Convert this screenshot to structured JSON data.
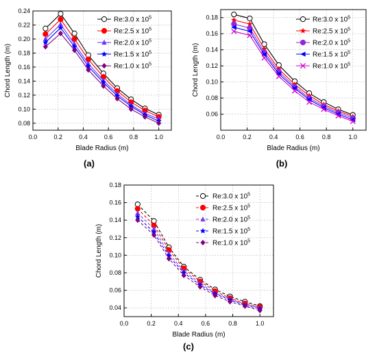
{
  "chart_data": [
    {
      "type": "line",
      "panel_label": "(a)",
      "xlabel": "Blade Radius (m)",
      "ylabel": "Chord Length (m)",
      "xlim": [
        0.0,
        1.1
      ],
      "ylim": [
        0.07,
        0.24
      ],
      "xticks": [
        "0.0",
        "0.2",
        "0.4",
        "0.6",
        "0.8",
        "1.0"
      ],
      "yticks": [
        "0.08",
        "0.10",
        "0.12",
        "0.14",
        "0.16",
        "0.18",
        "0.20",
        "0.22",
        "0.24"
      ],
      "grid": true,
      "legend_position": "top-right",
      "x": [
        0.1,
        0.22,
        0.33,
        0.44,
        0.56,
        0.67,
        0.78,
        0.89,
        1.0
      ],
      "series": [
        {
          "name": "Re:3.0 x 10",
          "exp": "5",
          "color": "#000000",
          "marker": "circle-open",
          "dash": "solid",
          "values": [
            0.215,
            0.236,
            0.208,
            0.177,
            0.151,
            0.13,
            0.114,
            0.101,
            0.092
          ]
        },
        {
          "name": "Re:2.5 x 10",
          "exp": "5",
          "color": "#ff0000",
          "marker": "circle",
          "dash": "solid",
          "values": [
            0.207,
            0.228,
            0.2,
            0.171,
            0.146,
            0.126,
            0.11,
            0.098,
            0.089
          ]
        },
        {
          "name": "Re:2.0 x 10",
          "exp": "5",
          "color": "#6633ff",
          "marker": "triangle",
          "dash": "solid",
          "values": [
            0.2,
            0.221,
            0.193,
            0.165,
            0.141,
            0.122,
            0.106,
            0.094,
            0.086
          ]
        },
        {
          "name": "Re:1.5 x 10",
          "exp": "5",
          "color": "#0000ff",
          "marker": "star",
          "dash": "solid",
          "values": [
            0.195,
            0.216,
            0.189,
            0.161,
            0.138,
            0.119,
            0.104,
            0.092,
            0.083
          ]
        },
        {
          "name": "Re:1.0 x 10",
          "exp": "5",
          "color": "#800080",
          "marker": "diamond",
          "dash": "solid",
          "values": [
            0.189,
            0.208,
            0.184,
            0.156,
            0.133,
            0.115,
            0.1,
            0.089,
            0.08
          ]
        }
      ]
    },
    {
      "type": "line",
      "panel_label": "(b)",
      "xlabel": "Blade  Radius (m)",
      "ylabel": "Chord Length (m)",
      "xlim": [
        0.0,
        1.1
      ],
      "ylim": [
        0.04,
        0.19
      ],
      "xticks": [
        "0.0",
        "0.2",
        "0.4",
        "0.6",
        "0.8",
        "1.0"
      ],
      "yticks": [
        "0.06",
        "0.08",
        "0.10",
        "0.12",
        "0.14",
        "0.16",
        "0.18"
      ],
      "grid": true,
      "legend_position": "top-right",
      "x": [
        0.1,
        0.22,
        0.33,
        0.44,
        0.56,
        0.67,
        0.78,
        0.89,
        1.0
      ],
      "series": [
        {
          "name": "Re:3.0 x 10",
          "exp": "5",
          "color": "#000000",
          "marker": "circle-open",
          "dash": "solid",
          "values": [
            0.184,
            0.179,
            0.147,
            0.121,
            0.101,
            0.086,
            0.075,
            0.066,
            0.059
          ]
        },
        {
          "name": "Re:2.5 x 10",
          "exp": "5",
          "color": "#ff0000",
          "marker": "star",
          "dash": "solid",
          "values": [
            0.177,
            0.172,
            0.141,
            0.116,
            0.097,
            0.083,
            0.072,
            0.064,
            0.057
          ]
        },
        {
          "name": "Re:2.0 x 10",
          "exp": "5",
          "color": "#8a2be2",
          "marker": "circle",
          "dash": "solid",
          "values": [
            0.172,
            0.167,
            0.137,
            0.113,
            0.094,
            0.08,
            0.07,
            0.062,
            0.055
          ]
        },
        {
          "name": "Re:1.5 x 10",
          "exp": "5",
          "color": "#0000ff",
          "marker": "triangle-left",
          "dash": "solid",
          "values": [
            0.168,
            0.163,
            0.134,
            0.11,
            0.092,
            0.078,
            0.068,
            0.06,
            0.053
          ]
        },
        {
          "name": "Re:1.0 x 10",
          "exp": "5",
          "color": "#cc00cc",
          "marker": "x",
          "dash": "solid",
          "values": [
            0.163,
            0.158,
            0.13,
            0.107,
            0.089,
            0.075,
            0.066,
            0.058,
            0.051
          ]
        }
      ]
    },
    {
      "type": "line",
      "panel_label": "(c)",
      "xlabel": "Blade Radius (m)",
      "ylabel": "Chord Length (m)",
      "xlim": [
        0.0,
        1.1
      ],
      "ylim": [
        0.03,
        0.18
      ],
      "xticks": [
        "0.0",
        "0.2",
        "0.4",
        "0.6",
        "0.8",
        "1.0"
      ],
      "yticks": [
        "0.04",
        "0.06",
        "0.08",
        "0.10",
        "0.12",
        "0.14",
        "0.16",
        "0.18"
      ],
      "grid": true,
      "legend_position": "top-right",
      "x": [
        0.1,
        0.22,
        0.33,
        0.44,
        0.56,
        0.67,
        0.78,
        0.89,
        1.0
      ],
      "series": [
        {
          "name": "Re:3.0 x 10",
          "exp": "5",
          "color": "#000000",
          "marker": "circle-open",
          "dash": "dashed",
          "values": [
            0.158,
            0.139,
            0.109,
            0.087,
            0.072,
            0.061,
            0.053,
            0.047,
            0.042
          ]
        },
        {
          "name": "Re:2.5 x 10",
          "exp": "5",
          "color": "#ff0000",
          "marker": "circle",
          "dash": "dashed",
          "values": [
            0.153,
            0.134,
            0.106,
            0.085,
            0.07,
            0.059,
            0.051,
            0.045,
            0.041
          ]
        },
        {
          "name": "Re:2.0 x 10",
          "exp": "5",
          "color": "#7b3fe4",
          "marker": "triangle",
          "dash": "dashed",
          "values": [
            0.148,
            0.13,
            0.102,
            0.082,
            0.068,
            0.057,
            0.05,
            0.044,
            0.04
          ]
        },
        {
          "name": "Re:1.5 x 10",
          "exp": "5",
          "color": "#0000ff",
          "marker": "star",
          "dash": "dashed",
          "values": [
            0.144,
            0.126,
            0.099,
            0.08,
            0.066,
            0.056,
            0.049,
            0.043,
            0.039
          ]
        },
        {
          "name": "Re:1.0 x 10",
          "exp": "5",
          "color": "#800080",
          "marker": "diamond",
          "dash": "dashed",
          "values": [
            0.14,
            0.123,
            0.096,
            0.077,
            0.064,
            0.054,
            0.047,
            0.042,
            0.037
          ]
        }
      ]
    }
  ]
}
